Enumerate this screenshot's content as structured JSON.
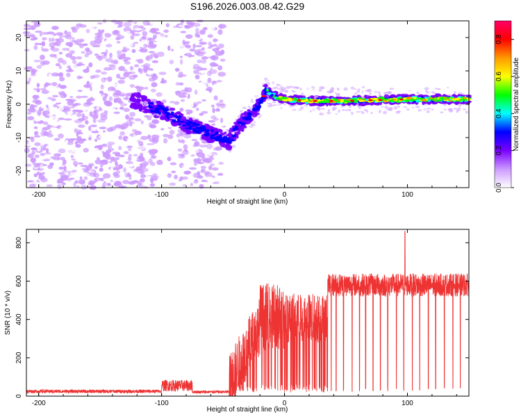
{
  "title": "S196.2026.003.08.42.G29",
  "chart_data": [
    {
      "type": "heatmap",
      "xlabel": "Height of straight line (km)",
      "ylabel": "Frequency (Hz)",
      "xlim": [
        -210,
        150
      ],
      "ylim": [
        -25,
        25
      ],
      "xticks": [
        -200,
        -100,
        0,
        100
      ],
      "yticks": [
        -20,
        -10,
        0,
        10,
        20
      ],
      "colorbar": {
        "label": "Normalized spectral amplitude",
        "range": [
          0,
          0.9
        ],
        "ticks": [
          "0.0",
          "0.2",
          "0.4",
          "0.6",
          "0.8"
        ],
        "colors": [
          "#ffffff",
          "#cc99ff",
          "#7a00ff",
          "#0000ff",
          "#00ffff",
          "#00ff00",
          "#ffff00",
          "#ff9900",
          "#ff0000",
          "#ff0066"
        ]
      },
      "ridge": {
        "x": [
          -120,
          -100,
          -80,
          -60,
          -45,
          -38,
          -30,
          -20,
          -15,
          -10,
          -5,
          0,
          20,
          50,
          100,
          150
        ],
        "y": [
          1,
          -2,
          -6,
          -9,
          -11,
          -7,
          -4,
          0,
          4,
          3,
          2,
          1.5,
          1,
          1,
          1.5,
          1.5
        ]
      }
    },
    {
      "type": "line",
      "xlabel": "Height of straight line (km)",
      "ylabel": "SNR (10 * v/v)",
      "xlim": [
        -210,
        150
      ],
      "ylim": [
        0,
        870
      ],
      "xticks": [
        -200,
        -100,
        0,
        100
      ],
      "yticks": [
        0,
        200,
        400,
        600,
        800
      ],
      "color": "#ee3333",
      "segments": [
        {
          "x0": -210,
          "x1": -100,
          "mean": 25,
          "spread": 18
        },
        {
          "x0": -100,
          "x1": -75,
          "mean": 55,
          "spread": 60
        },
        {
          "x0": -75,
          "x1": -45,
          "mean": 22,
          "spread": 15
        },
        {
          "x0": -45,
          "x1": -20,
          "mean": 250,
          "spread": 300
        },
        {
          "x0": -20,
          "x1": 0,
          "mean": 380,
          "spread": 350
        },
        {
          "x0": 0,
          "x1": 35,
          "mean": 380,
          "spread": 260
        },
        {
          "x0": 35,
          "x1": 150,
          "mean": 580,
          "spread": 120
        }
      ],
      "drops_x": [
        15,
        20,
        25,
        30,
        35,
        38,
        42,
        48,
        55,
        61,
        66,
        72,
        78,
        84,
        91,
        97,
        104,
        110,
        117,
        123,
        130,
        137,
        143
      ],
      "peak": {
        "x": 98,
        "y": 860
      }
    }
  ]
}
